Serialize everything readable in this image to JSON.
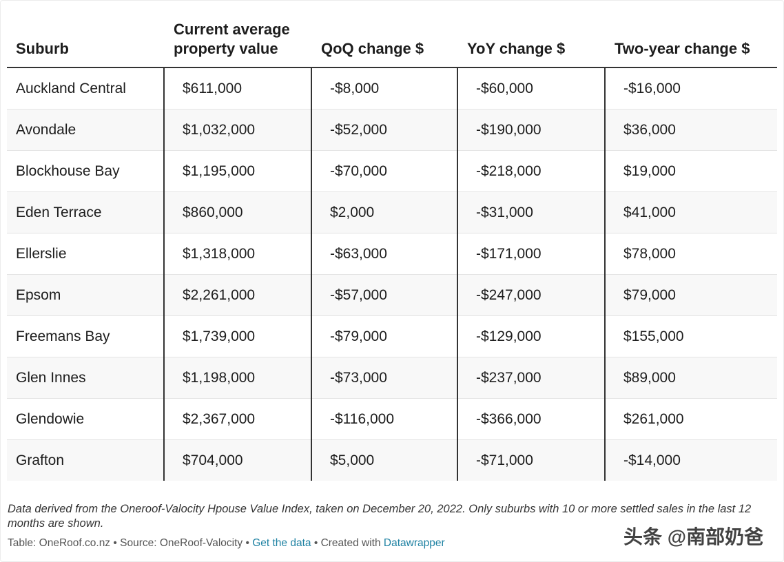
{
  "chart_data": {
    "type": "table",
    "columns": [
      "Suburb",
      "Current average property value",
      "QoQ change $",
      "YoY change $",
      "Two-year change $"
    ],
    "rows": [
      [
        "Auckland Central",
        "$611,000",
        "-$8,000",
        "-$60,000",
        "-$16,000"
      ],
      [
        "Avondale",
        "$1,032,000",
        "-$52,000",
        "-$190,000",
        "$36,000"
      ],
      [
        "Blockhouse Bay",
        "$1,195,000",
        "-$70,000",
        "-$218,000",
        "$19,000"
      ],
      [
        "Eden Terrace",
        "$860,000",
        "$2,000",
        "-$31,000",
        "$41,000"
      ],
      [
        "Ellerslie",
        "$1,318,000",
        "-$63,000",
        "-$171,000",
        "$78,000"
      ],
      [
        "Epsom",
        "$2,261,000",
        "-$57,000",
        "-$247,000",
        "$79,000"
      ],
      [
        "Freemans Bay",
        "$1,739,000",
        "-$79,000",
        "-$129,000",
        "$155,000"
      ],
      [
        "Glen Innes",
        "$1,198,000",
        "-$73,000",
        "-$237,000",
        "$89,000"
      ],
      [
        "Glendowie",
        "$2,367,000",
        "-$116,000",
        "-$366,000",
        "$261,000"
      ],
      [
        "Grafton",
        "$704,000",
        "$5,000",
        "-$71,000",
        "-$14,000"
      ]
    ]
  },
  "footer": {
    "notes": "Data derived from the Oneroof-Valocity Hpouse Value Index, taken on December 20, 2022. Only suburbs with 10 or more settled sales in the last 12 months are shown.",
    "table_credit": "Table: OneRoof.co.nz",
    "source": "Source: OneRoof-Valocity",
    "separator": " • ",
    "get_data": "Get the data",
    "created_with": "Created with ",
    "datawrapper": "Datawrapper",
    "link_color": "#1d81a2"
  },
  "watermark": "头条 @南部奶爸"
}
